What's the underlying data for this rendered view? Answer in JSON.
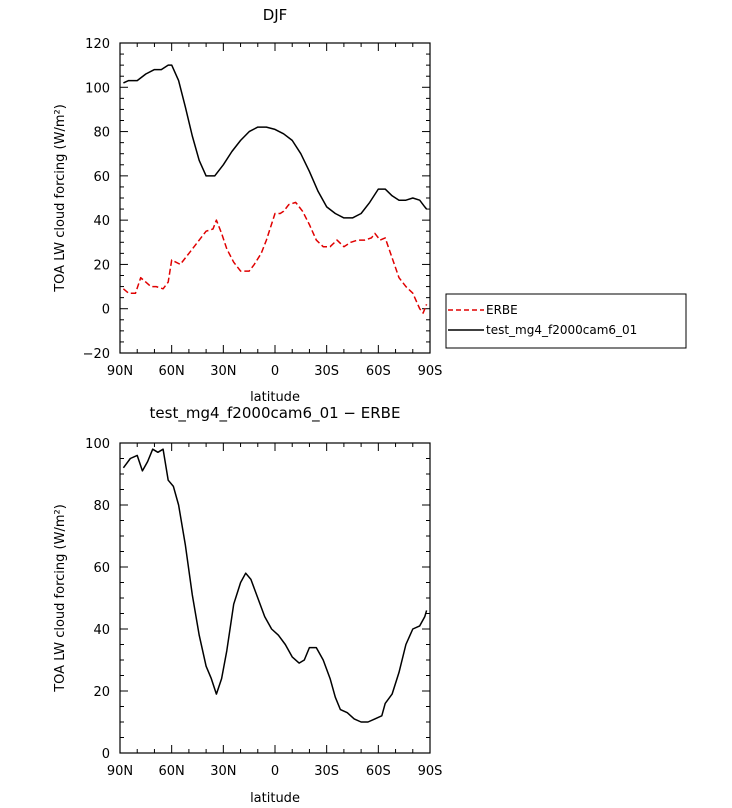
{
  "chart_data": [
    {
      "type": "line",
      "title": "DJF",
      "xlabel": "latitude",
      "ylabel": "TOA LW cloud forcing (W/m²)",
      "x_ticklabels": [
        "90N",
        "60N",
        "30N",
        "0",
        "30S",
        "60S",
        "90S"
      ],
      "xlim": [
        90,
        -90
      ],
      "ylim": [
        -20,
        120
      ],
      "y_ticks": [
        -20,
        0,
        20,
        40,
        60,
        80,
        100,
        120
      ],
      "legend_position": "right, outside plot",
      "series": [
        {
          "name": "ERBE",
          "color": "#e00000",
          "style": "dashed",
          "x": [
            88,
            85,
            81,
            78,
            75,
            72,
            69,
            65,
            62,
            60,
            55,
            50,
            45,
            40,
            36,
            34,
            31,
            28,
            24,
            20,
            18,
            15,
            12,
            8,
            5,
            0,
            -3,
            -5,
            -8,
            -12,
            -16,
            -20,
            -24,
            -28,
            -32,
            -36,
            -40,
            -44,
            -48,
            -52,
            -56,
            -58,
            -61,
            -64,
            -68,
            -72,
            -76,
            -80,
            -84,
            -86,
            -88
          ],
          "y": [
            9,
            7,
            7,
            14,
            12,
            10,
            10,
            9,
            12,
            22,
            20,
            25,
            30,
            35,
            36,
            40,
            34,
            27,
            21,
            17,
            17,
            17,
            20,
            25,
            31,
            43,
            43,
            44,
            47,
            48,
            44,
            38,
            31,
            28,
            28,
            31,
            28,
            30,
            31,
            31,
            32,
            34,
            31,
            32,
            23,
            14,
            10,
            7,
            0,
            -2,
            2
          ]
        },
        {
          "name": "test_mg4_f2000cam6_01",
          "color": "#000000",
          "style": "solid",
          "x": [
            88,
            85,
            80,
            75,
            70,
            66,
            62,
            60,
            56,
            52,
            48,
            44,
            40,
            35,
            30,
            25,
            20,
            15,
            10,
            5,
            0,
            -5,
            -10,
            -15,
            -20,
            -25,
            -30,
            -35,
            -40,
            -45,
            -50,
            -55,
            -60,
            -64,
            -68,
            -72,
            -76,
            -80,
            -84,
            -87,
            -88
          ],
          "y": [
            102,
            103,
            103,
            106,
            108,
            108,
            110,
            110,
            103,
            91,
            78,
            67,
            60,
            60,
            65,
            71,
            76,
            80,
            82,
            82,
            81,
            79,
            76,
            70,
            62,
            53,
            46,
            43,
            41,
            41,
            43,
            48,
            54,
            54,
            51,
            49,
            49,
            50,
            49,
            46,
            45
          ]
        }
      ]
    },
    {
      "type": "line",
      "title": "test_mg4_f2000cam6_01 − ERBE",
      "xlabel": "latitude",
      "ylabel": "TOA LW cloud forcing (W/m²)",
      "x_ticklabels": [
        "90N",
        "60N",
        "30N",
        "0",
        "30S",
        "60S",
        "90S"
      ],
      "xlim": [
        90,
        -90
      ],
      "ylim": [
        0,
        100
      ],
      "y_ticks": [
        0,
        20,
        40,
        60,
        80,
        100
      ],
      "series": [
        {
          "color": "#000000",
          "style": "solid",
          "x": [
            88,
            84,
            80,
            77,
            74,
            71,
            68,
            65,
            62,
            59,
            56,
            52,
            48,
            44,
            40,
            37,
            34,
            31,
            28,
            24,
            20,
            17,
            14,
            10,
            6,
            2,
            -2,
            -6,
            -10,
            -14,
            -17,
            -20,
            -24,
            -28,
            -32,
            -35,
            -38,
            -42,
            -46,
            -50,
            -54,
            -58,
            -62,
            -64,
            -68,
            -72,
            -76,
            -80,
            -84,
            -87,
            -88
          ],
          "y": [
            92,
            95,
            96,
            91,
            94,
            98,
            97,
            98,
            88,
            86,
            80,
            67,
            51,
            38,
            28,
            24,
            19,
            24,
            33,
            48,
            55,
            58,
            56,
            50,
            44,
            40,
            38,
            35,
            31,
            29,
            30,
            34,
            34,
            30,
            24,
            18,
            14,
            13,
            11,
            10,
            10,
            11,
            12,
            16,
            19,
            26,
            35,
            40,
            41,
            44,
            46
          ]
        }
      ]
    }
  ]
}
